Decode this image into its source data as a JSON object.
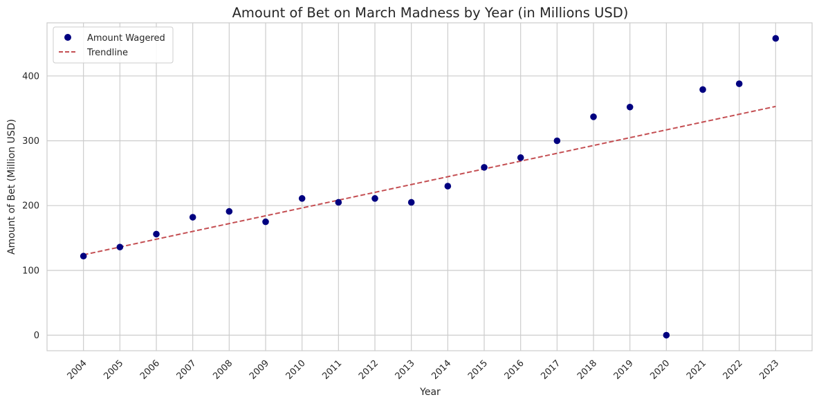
{
  "chart_data": {
    "type": "scatter",
    "title": "Amount of Bet on March Madness by Year (in Millions USD)",
    "xlabel": "Year",
    "ylabel": "Amount of Bet (Million USD)",
    "x": [
      2004,
      2005,
      2006,
      2007,
      2008,
      2009,
      2010,
      2011,
      2012,
      2013,
      2014,
      2015,
      2016,
      2017,
      2018,
      2019,
      2020,
      2021,
      2022,
      2023
    ],
    "y_ticks": [
      0,
      100,
      200,
      300,
      400
    ],
    "xlim": [
      2003,
      2024
    ],
    "ylim": [
      -24,
      482
    ],
    "grid": true,
    "legend_position": "top-left",
    "series": [
      {
        "name": "Amount Wagered",
        "kind": "scatter",
        "color": "#000080",
        "values": [
          122,
          136,
          156,
          182,
          191,
          175,
          211,
          205,
          211,
          205,
          230,
          259,
          274,
          300,
          337,
          352,
          0,
          379,
          388,
          458
        ]
      },
      {
        "name": "Trendline",
        "kind": "line",
        "style": "dashed",
        "color": "#c44e52",
        "points": [
          [
            2004,
            124
          ],
          [
            2023,
            353
          ]
        ]
      }
    ]
  },
  "colors": {
    "grid": "#cccccc",
    "axes_edge": "#cccccc",
    "text": "#262626"
  }
}
